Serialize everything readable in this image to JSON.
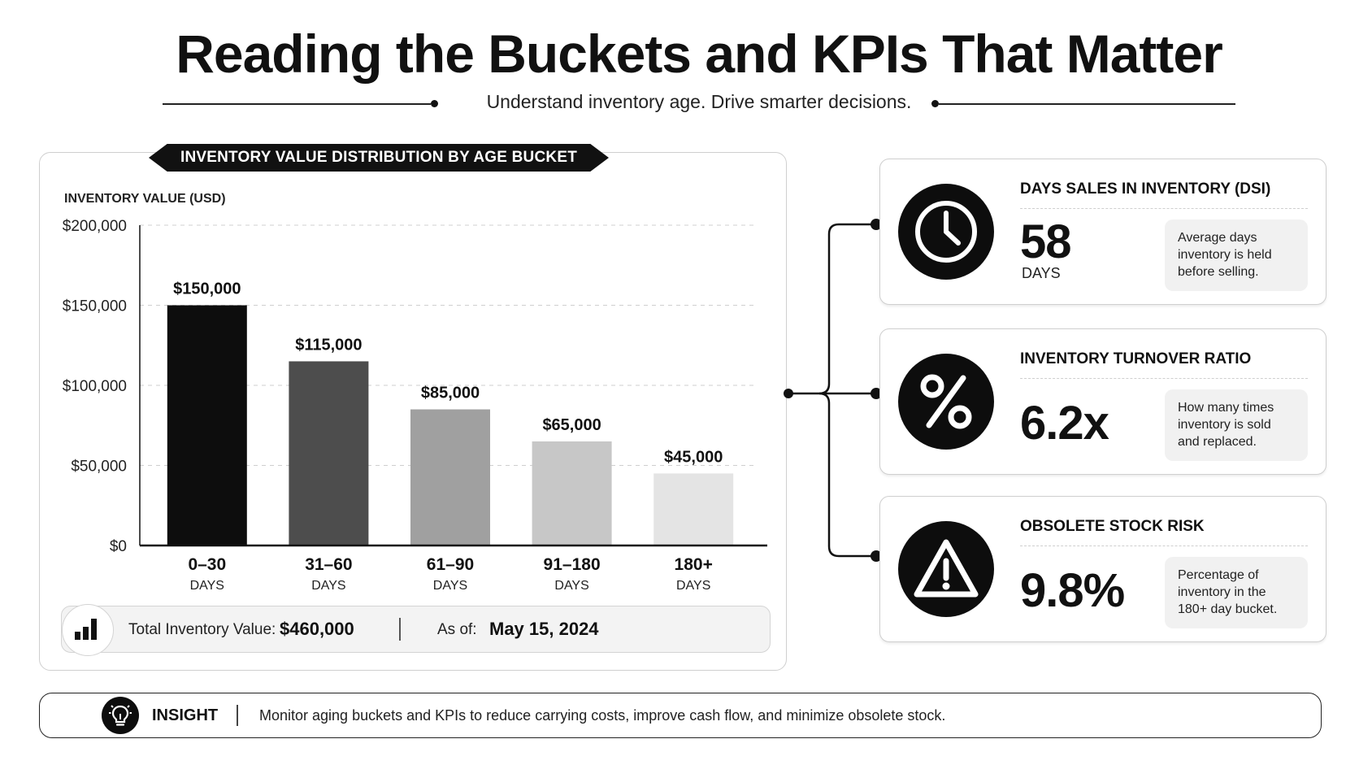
{
  "header": {
    "title": "Reading the Buckets and KPIs That Matter",
    "subtitle": "Understand inventory age. Drive smarter decisions."
  },
  "chart_card": {
    "tab_label": "INVENTORY VALUE DISTRIBUTION BY AGE BUCKET"
  },
  "chart_data": {
    "type": "bar",
    "title": "INVENTORY VALUE DISTRIBUTION BY AGE BUCKET",
    "ylabel": "INVENTORY VALUE (USD)",
    "xlabel": "",
    "categories": [
      "0–30",
      "31–60",
      "61–90",
      "91–180",
      "180+"
    ],
    "category_units": [
      "DAYS",
      "DAYS",
      "DAYS",
      "DAYS",
      "DAYS"
    ],
    "values": [
      150000,
      115000,
      85000,
      65000,
      45000
    ],
    "value_labels": [
      "$150,000",
      "$115,000",
      "$85,000",
      "$65,000",
      "$45,000"
    ],
    "bar_colors": [
      "#0d0d0d",
      "#4d4d4d",
      "#a0a0a0",
      "#c7c7c7",
      "#e4e4e4"
    ],
    "ylim": [
      0,
      200000
    ],
    "yticks": [
      0,
      50000,
      100000,
      150000,
      200000
    ],
    "ytick_labels": [
      "$0",
      "$50,000",
      "$100,000",
      "$150,000",
      "$200,000"
    ],
    "grid": true,
    "legend": "none"
  },
  "summary": {
    "icon": "bar-chart-icon",
    "total_label": "Total Inventory Value:",
    "total_value": "$460,000",
    "asof_label": "As of:",
    "asof_value": "May 15, 2024"
  },
  "kpis": [
    {
      "title": "DAYS SALES IN INVENTORY (DSI)",
      "value": "58",
      "unit": "DAYS",
      "description": "Average days inventory is held before selling.",
      "icon": "clock-icon"
    },
    {
      "title": "INVENTORY TURNOVER RATIO",
      "value": "6.2x",
      "unit": "",
      "description": "How many times inventory is sold and replaced.",
      "icon": "percent-icon"
    },
    {
      "title": "OBSOLETE STOCK RISK",
      "value": "9.8%",
      "unit": "",
      "description": "Percentage of inventory in the 180+ day bucket.",
      "icon": "warning-icon"
    }
  ],
  "insight": {
    "icon": "lightbulb-icon",
    "label": "INSIGHT",
    "text": "Monitor aging buckets and KPIs to reduce carrying costs, improve cash flow, and minimize obsolete stock."
  }
}
